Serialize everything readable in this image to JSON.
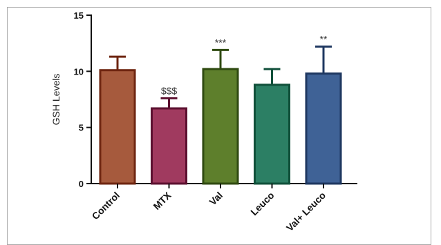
{
  "chart_data": {
    "type": "bar",
    "title": "",
    "xlabel": "",
    "ylabel": "GSH Levels",
    "ylim": [
      0,
      15
    ],
    "yticks": [
      "0",
      "5",
      "10",
      "15"
    ],
    "ytick_values": [
      0,
      5,
      10,
      15
    ],
    "grid": false,
    "legend": "none",
    "categories": [
      "Control",
      "MTX",
      "Val",
      "Leuco",
      "Val+ Leuco"
    ],
    "values": [
      10.1,
      6.7,
      10.2,
      8.8,
      9.8
    ],
    "errors": [
      1.2,
      0.9,
      1.7,
      1.4,
      2.4
    ],
    "annotations": [
      "",
      "$$$",
      "***",
      "",
      "**"
    ],
    "bar_fill_colors": [
      "#a65a3d",
      "#a03a5f",
      "#5e7f2c",
      "#2c7f64",
      "#3f6296"
    ],
    "bar_edge_colors": [
      "#6e2510",
      "#5c1030",
      "#2f4a10",
      "#10503a",
      "#1e3760"
    ]
  }
}
